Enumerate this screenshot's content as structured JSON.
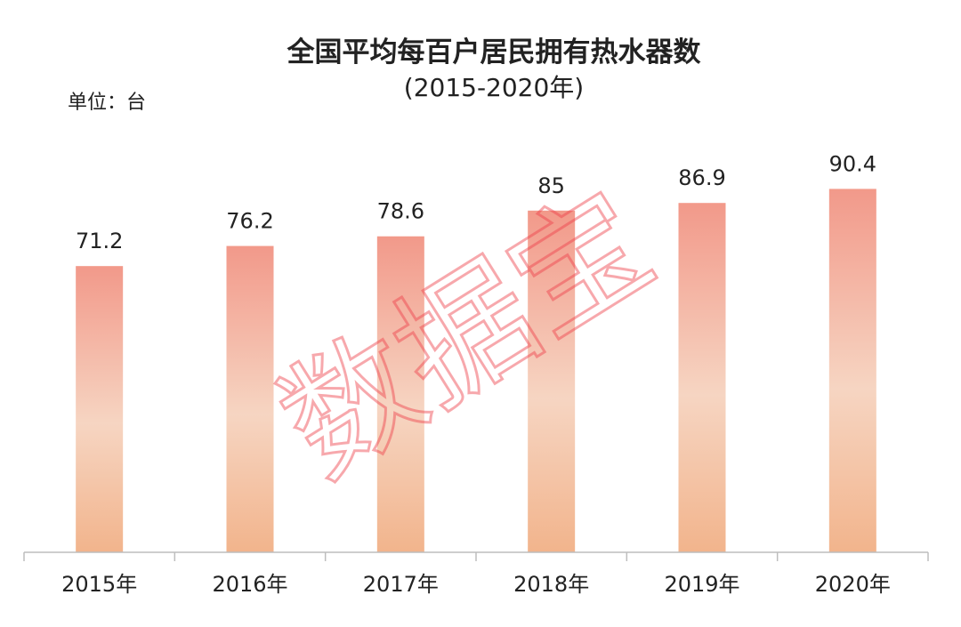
{
  "chart_data": {
    "type": "bar",
    "title": "全国平均每百户居民拥有热水器数",
    "subtitle": "(2015-2020年)",
    "unit_label": "单位：台",
    "categories": [
      "2015年",
      "2016年",
      "2017年",
      "2018年",
      "2019年",
      "2020年"
    ],
    "values": [
      71.2,
      76.2,
      78.6,
      85,
      86.9,
      90.4
    ],
    "value_labels": [
      "71.2",
      "76.2",
      "78.6",
      "85",
      "86.9",
      "90.4"
    ],
    "ylim": [
      0,
      100
    ],
    "grid": false,
    "legend": "none",
    "watermark": "数据宝",
    "colors": {
      "bar_top": "#f2998a",
      "bar_mid": "#f6d5c2",
      "bar_bottom": "#f2b48c",
      "axis": "#bdbdbd",
      "text": "#222222",
      "watermark": "#ef3f4a"
    }
  }
}
